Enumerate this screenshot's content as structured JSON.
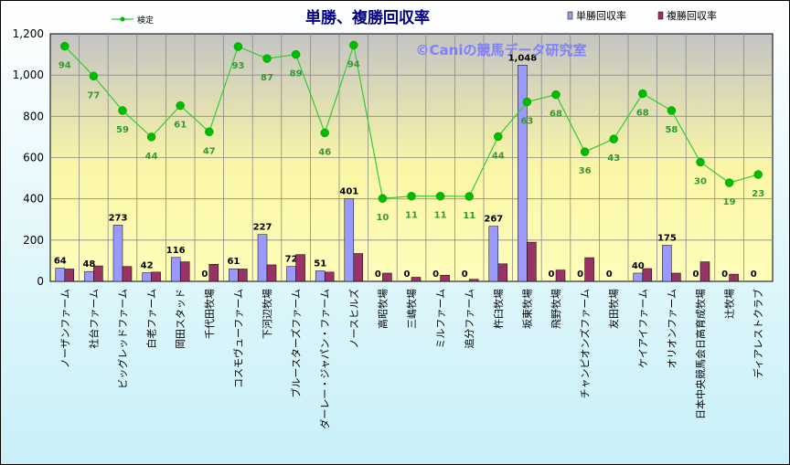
{
  "chart_data": {
    "type": "bar",
    "title": "単勝、複勝回収率",
    "watermark": "©Caniの競馬データ研究室",
    "categories": [
      "ノーザンファーム",
      "社台ファーム",
      "ビッグレッドファーム",
      "白老ファーム",
      "岡田スタッド",
      "千代田牧場",
      "コスモヴューファーム",
      "下河辺牧場",
      "ブルースターズファーム",
      "ダーレー・ジャパン・ファーム",
      "ノースヒルズ",
      "高昭牧場",
      "三嶋牧場",
      "ミルファーム",
      "追分ファーム",
      "杵臼牧場",
      "坂東牧場",
      "飛野牧場",
      "チャンピオンズファーム",
      "友田牧場",
      "ケイアイファーム",
      "オリオンファーム",
      "日本中央競馬会日高育成牧場",
      "辻牧場",
      "ディアレストクラブ"
    ],
    "series": [
      {
        "name": "単勝回収率",
        "type": "bar",
        "color": "#9999ff",
        "values": [
          64,
          48,
          273,
          42,
          116,
          0,
          61,
          227,
          72,
          51,
          401,
          0,
          0,
          0,
          0,
          267,
          1048,
          0,
          0,
          0,
          40,
          175,
          0,
          0,
          0
        ],
        "labels": [
          "64",
          "48",
          "273",
          "42",
          "116",
          "0",
          "61",
          "227",
          "72",
          "51",
          "401",
          "0",
          "0",
          "0",
          "0",
          "267",
          "1,048",
          "0",
          "0",
          "0",
          "40",
          "175",
          "0",
          "0",
          "0"
        ]
      },
      {
        "name": "複勝回収率",
        "type": "bar",
        "color": "#993366",
        "values": [
          60,
          75,
          72,
          45,
          95,
          83,
          60,
          80,
          130,
          45,
          135,
          40,
          20,
          30,
          10,
          85,
          190,
          55,
          115,
          0,
          62,
          40,
          95,
          35,
          0
        ]
      },
      {
        "name": "検定",
        "type": "line",
        "color": "#33cc33",
        "values": [
          1140,
          995,
          828,
          700,
          852,
          725,
          1138,
          1080,
          1100,
          720,
          1145,
          402,
          413,
          413,
          412,
          702,
          870,
          905,
          628,
          690,
          910,
          828,
          578,
          478,
          518
        ],
        "labels": [
          "94",
          "77",
          "59",
          "44",
          "61",
          "47",
          "93",
          "87",
          "89",
          "46",
          "94",
          "10",
          "11",
          "11",
          "11",
          "44",
          "63",
          "68",
          "36",
          "43",
          "68",
          "58",
          "30",
          "19",
          "23"
        ]
      }
    ],
    "ylim": [
      0,
      1200
    ],
    "yticks": [
      "0",
      "200",
      "400",
      "600",
      "800",
      "1,000",
      "1,200"
    ],
    "grid": true,
    "legend": "top"
  },
  "colors": {
    "bar1": "#9999ff",
    "bar2": "#993366",
    "line": "#33cc33",
    "marker": "#00bb00",
    "line_label": "#339933",
    "title": "#000080",
    "watermark": "#7f7fff"
  }
}
